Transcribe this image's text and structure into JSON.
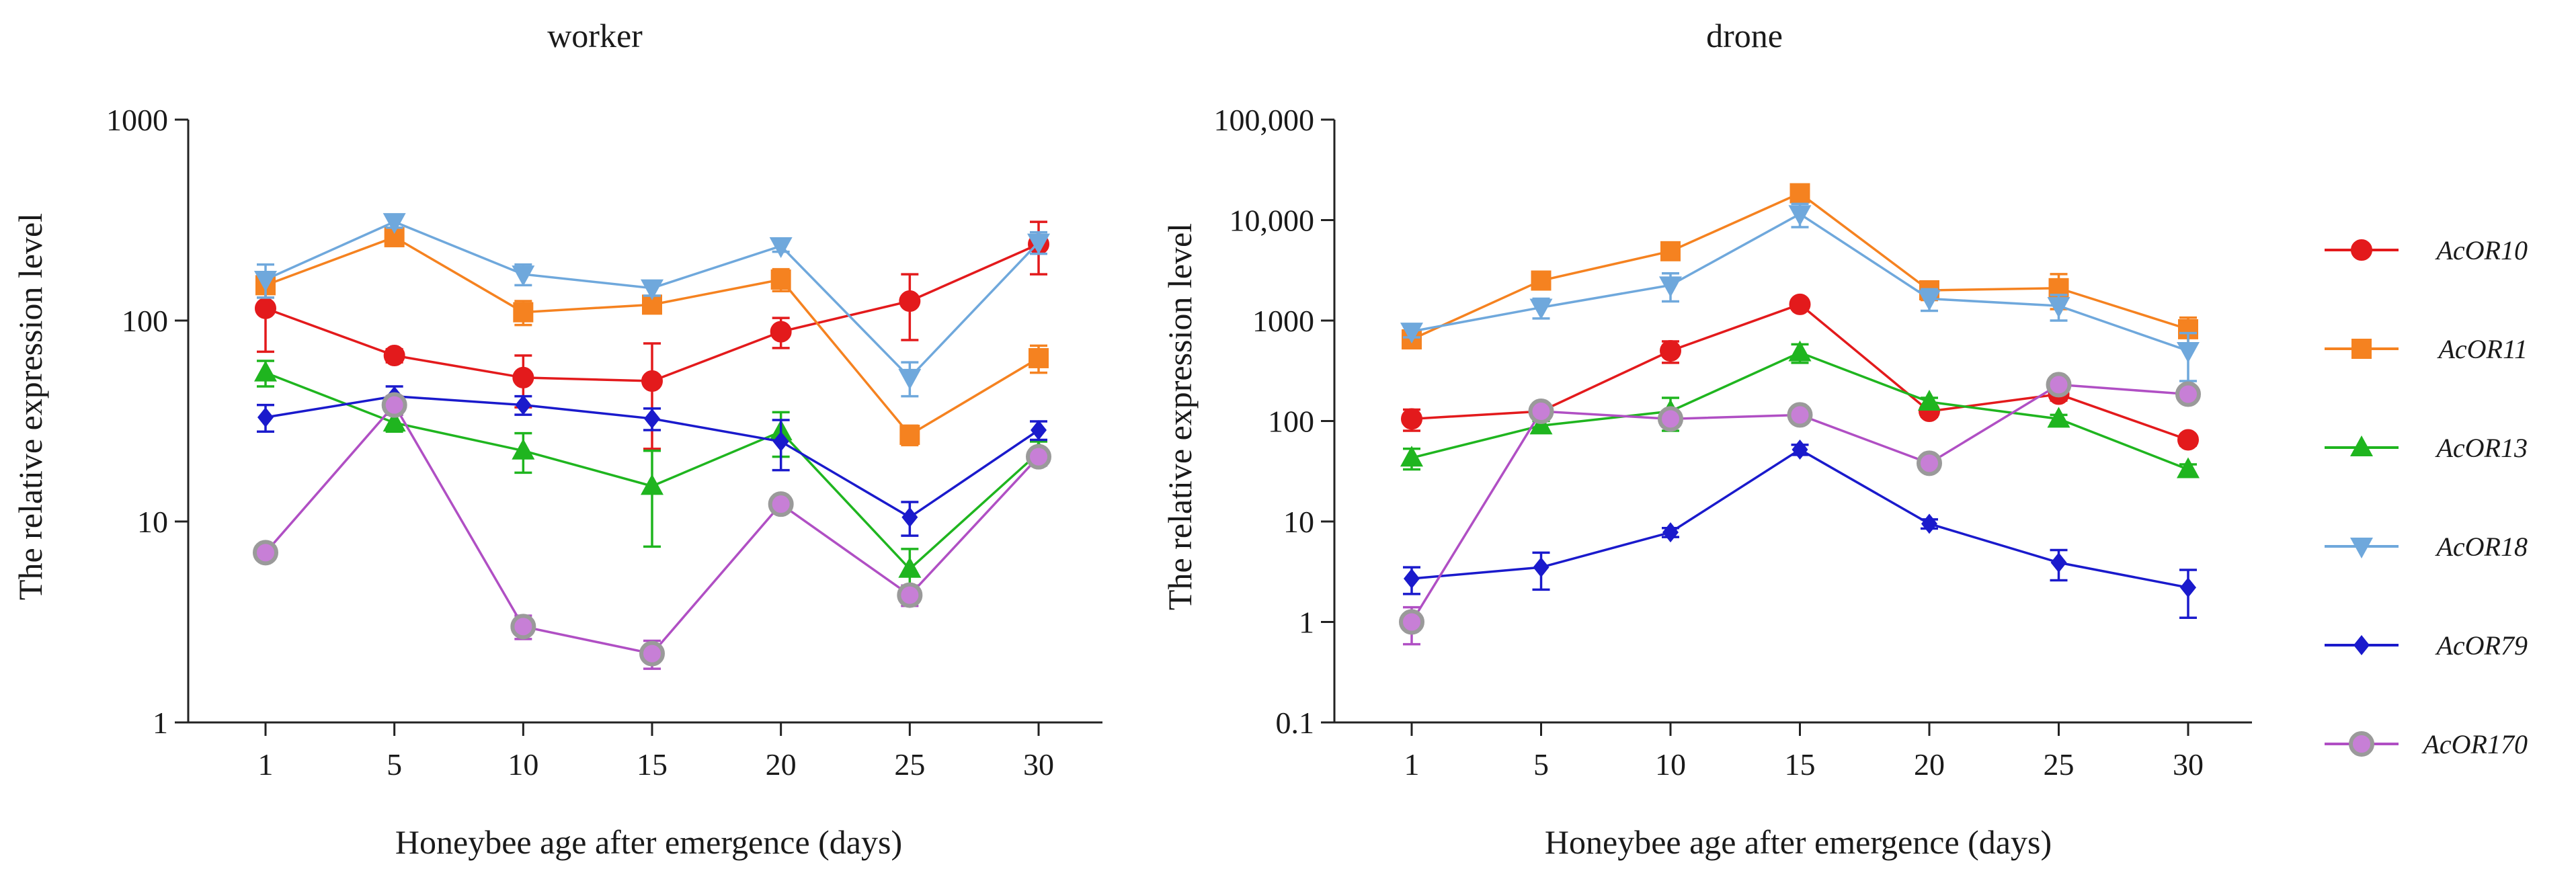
{
  "chart_data": [
    {
      "type": "line",
      "id": "worker",
      "title": "worker",
      "xlabel": "Honeybee age after emergence (days)",
      "ylabel": "The relative expression level",
      "yscale": "log",
      "ylim": [
        1,
        1000
      ],
      "categories": [
        "1",
        "5",
        "10",
        "15",
        "20",
        "25",
        "30"
      ],
      "yticks": [
        1,
        10,
        100,
        1000
      ],
      "ytick_labels": [
        "1",
        "10",
        "100",
        "1000"
      ],
      "series": [
        {
          "name": "AcOR10",
          "values": [
            115,
            67,
            52,
            50,
            88,
            125,
            240
          ],
          "err": [
            45,
            5,
            15,
            27,
            15,
            45,
            70
          ]
        },
        {
          "name": "AcOR11",
          "values": [
            150,
            260,
            110,
            120,
            160,
            27,
            65
          ],
          "err": [
            20,
            25,
            15,
            10,
            20,
            3,
            10
          ]
        },
        {
          "name": "AcOR13",
          "values": [
            55,
            31,
            22.5,
            15,
            28,
            5.8,
            22
          ],
          "err": [
            8,
            3,
            5,
            7.5,
            7,
            1.5,
            3
          ]
        },
        {
          "name": "AcOR18",
          "values": [
            160,
            310,
            170,
            145,
            235,
            52,
            245
          ],
          "err": [
            30,
            20,
            20,
            12,
            15,
            10,
            30
          ]
        },
        {
          "name": "AcOR79",
          "values": [
            33,
            42,
            38,
            32.5,
            25,
            10.5,
            28.5
          ],
          "err": [
            5,
            5,
            4,
            4,
            7,
            2,
            3
          ]
        },
        {
          "name": "AcOR170",
          "values": [
            7,
            38,
            3,
            2.2,
            12.2,
            4.3,
            21
          ],
          "err": [
            0.5,
            4,
            0.4,
            0.35,
            1,
            0.5,
            2
          ]
        }
      ]
    },
    {
      "type": "line",
      "id": "drone",
      "title": "drone",
      "xlabel": "Honeybee age after emergence (days)",
      "ylabel": "The relative expression level",
      "yscale": "log",
      "ylim": [
        0.1,
        100000
      ],
      "categories": [
        "1",
        "5",
        "10",
        "15",
        "20",
        "25",
        "30"
      ],
      "yticks": [
        0.1,
        1,
        10,
        100,
        1000,
        10000,
        100000
      ],
      "ytick_labels": [
        "0.1",
        "1",
        "10",
        "100",
        "1000",
        "10,000",
        "100,000"
      ],
      "series": [
        {
          "name": "AcOR10",
          "values": [
            105,
            125,
            500,
            1450,
            125,
            185,
            65
          ],
          "err": [
            25,
            15,
            120,
            150,
            15,
            25,
            8
          ]
        },
        {
          "name": "AcOR11",
          "values": [
            650,
            2500,
            4900,
            18500,
            2000,
            2100,
            820
          ],
          "err": [
            120,
            300,
            800,
            2500,
            400,
            800,
            250
          ]
        },
        {
          "name": "AcOR13",
          "values": [
            43,
            90,
            125,
            480,
            155,
            105,
            33
          ],
          "err": [
            10,
            10,
            45,
            100,
            15,
            10,
            4
          ]
        },
        {
          "name": "AcOR18",
          "values": [
            780,
            1350,
            2250,
            11500,
            1650,
            1400,
            500
          ],
          "err": [
            100,
            300,
            700,
            3000,
            400,
            400,
            250
          ]
        },
        {
          "name": "AcOR79",
          "values": [
            2.7,
            3.5,
            7.8,
            52,
            9.5,
            3.9,
            2.2
          ],
          "err": [
            0.8,
            1.4,
            0.8,
            6,
            1,
            1.3,
            1.1
          ]
        },
        {
          "name": "AcOR170",
          "values": [
            1.0,
            125,
            105,
            115,
            38,
            230,
            185
          ],
          "err": [
            0.4,
            15,
            12,
            12,
            5,
            25,
            20
          ]
        }
      ]
    }
  ],
  "legend": [
    {
      "name": "AcOR10",
      "color": "#e31a1c",
      "marker": "circle"
    },
    {
      "name": "AcOR11",
      "color": "#f58220",
      "marker": "square"
    },
    {
      "name": "AcOR13",
      "color": "#1fb51f",
      "marker": "triangle-up"
    },
    {
      "name": "AcOR18",
      "color": "#6fa8dc",
      "marker": "triangle-down"
    },
    {
      "name": "AcOR79",
      "color": "#1a1acc",
      "marker": "diamond"
    },
    {
      "name": "AcOR170",
      "color": "#b04fc4",
      "marker": "circle-ring"
    }
  ],
  "legend_position": "right"
}
